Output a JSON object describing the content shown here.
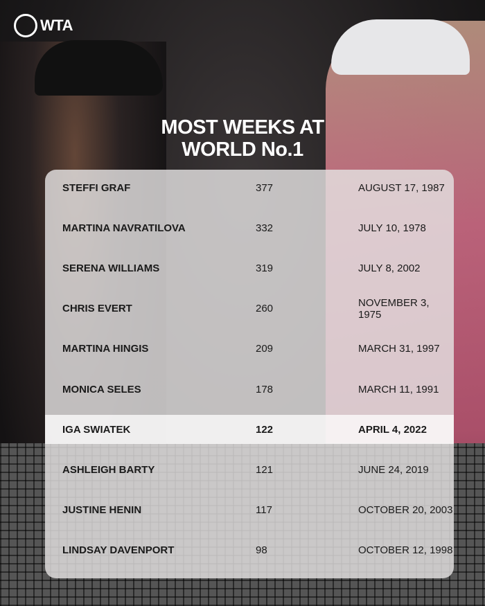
{
  "brand": {
    "logo_text": "WTA"
  },
  "title": {
    "line1": "MOST WEEKS AT",
    "line2": "WORLD No.1"
  },
  "table": {
    "rows": [
      {
        "name": "STEFFI GRAF",
        "weeks": "377",
        "date": "AUGUST 17, 1987"
      },
      {
        "name": "MARTINA NAVRATILOVA",
        "weeks": "332",
        "date": "JULY 10, 1978"
      },
      {
        "name": "SERENA WILLIAMS",
        "weeks": "319",
        "date": "JULY 8, 2002"
      },
      {
        "name": "CHRIS EVERT",
        "weeks": "260",
        "date": "NOVEMBER 3, 1975"
      },
      {
        "name": "MARTINA HINGIS",
        "weeks": "209",
        "date": "MARCH 31, 1997"
      },
      {
        "name": "MONICA SELES",
        "weeks": "178",
        "date": "MARCH 11, 1991"
      },
      {
        "name": "IGA SWIATEK",
        "weeks": "122",
        "date": "APRIL 4, 2022",
        "highlighted": true
      },
      {
        "name": "ASHLEIGH BARTY",
        "weeks": "121",
        "date": "JUNE 24, 2019"
      },
      {
        "name": "JUSTINE HENIN",
        "weeks": "117",
        "date": "OCTOBER 20, 2003"
      },
      {
        "name": "LINDSAY DAVENPORT",
        "weeks": "98",
        "date": "OCTOBER 12, 1998"
      }
    ]
  }
}
